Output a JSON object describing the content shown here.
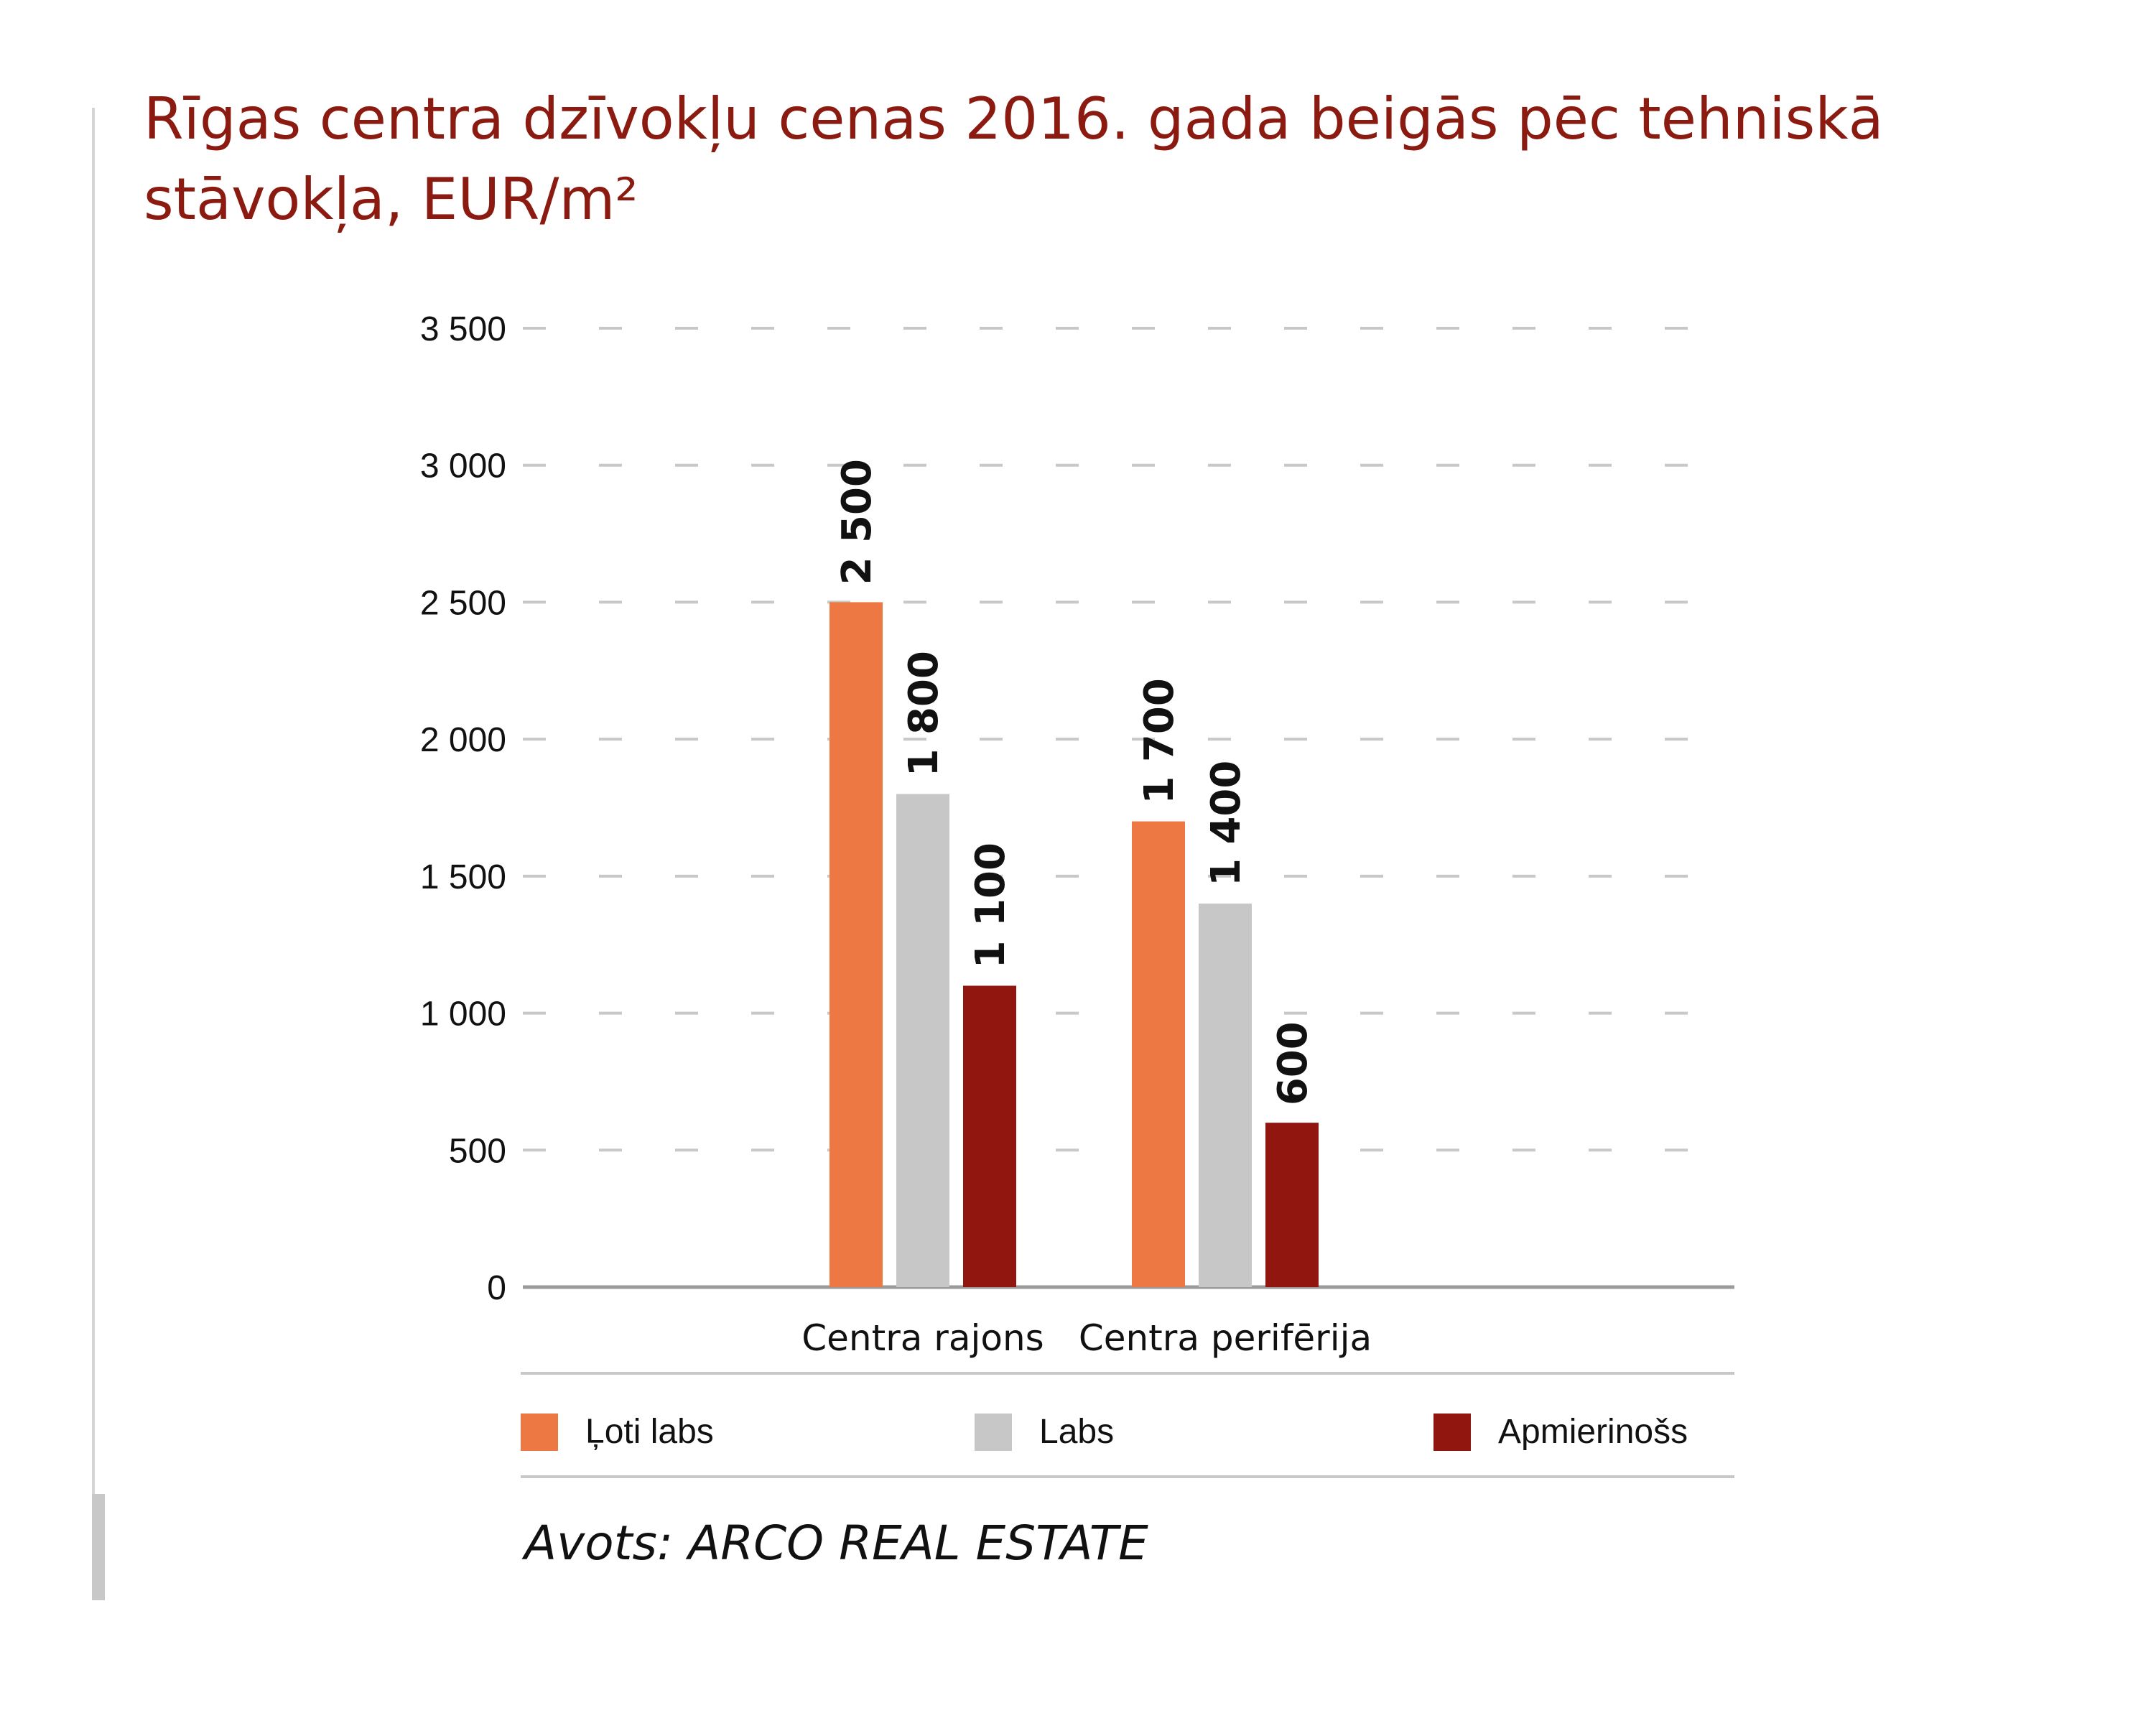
{
  "chart_data": {
    "type": "bar",
    "title": "Rīgas centra dzīvokļu cenas 2016. gada beigās pēc tehniskā stāvokļa, EUR/m²",
    "categories": [
      "Centra rajons",
      "Centra perifērija"
    ],
    "series": [
      {
        "name": "Ļoti labs",
        "color": "#ee7843",
        "values": [
          2500,
          1700
        ],
        "labels": [
          "2 500",
          "1 700"
        ]
      },
      {
        "name": "Labs",
        "color": "#c6c7c6",
        "values": [
          1800,
          1400
        ],
        "labels": [
          "1 800",
          "1 400"
        ]
      },
      {
        "name": "Apmierinošs",
        "color": "#921610",
        "values": [
          1100,
          600
        ],
        "labels": [
          "1 100",
          "600"
        ]
      }
    ],
    "yticks": [
      0,
      500,
      1000,
      1500,
      2000,
      2500,
      3000,
      3500
    ],
    "ytick_labels": [
      "0",
      "500",
      "1 000",
      "1 500",
      "2 000",
      "2 500",
      "3 000",
      "3 500"
    ],
    "ylim": [
      0,
      3500
    ],
    "grid": true,
    "legend_position": "bottom"
  },
  "source": {
    "prefix": "Avots:",
    "name": "ARCO REAL ESTATE"
  }
}
